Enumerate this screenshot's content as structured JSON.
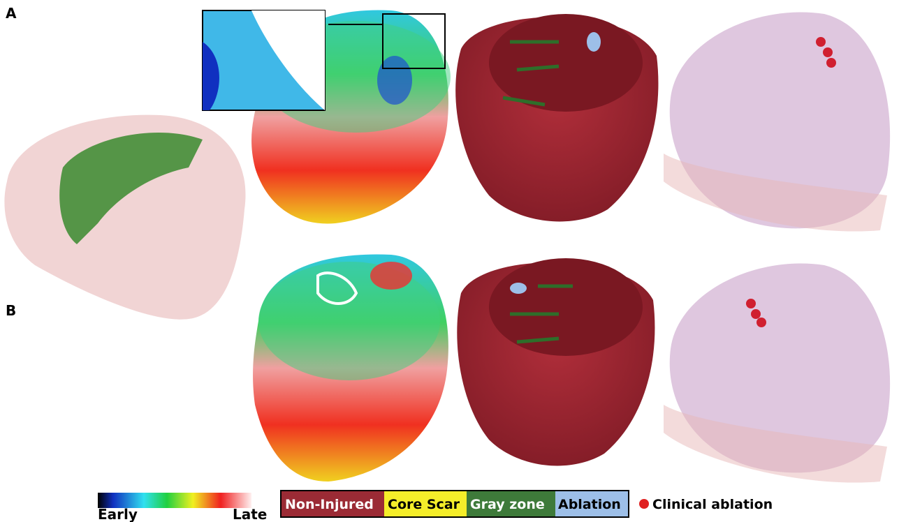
{
  "panels": {
    "a": "A",
    "b": "B"
  },
  "colorbar": {
    "early": "Early",
    "late": "Late"
  },
  "legend": {
    "items": [
      "Non-Injured",
      "Core Scar",
      "Gray zone",
      "Ablation"
    ],
    "marker": "Clinical ablation"
  }
}
